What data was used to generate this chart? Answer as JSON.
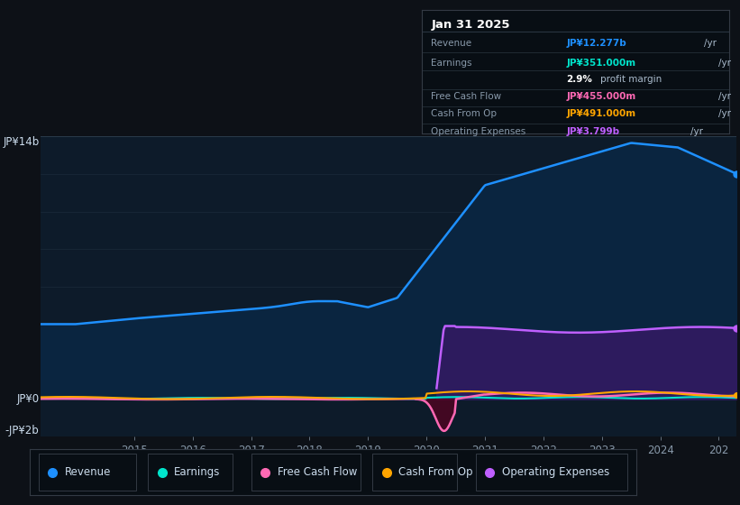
{
  "bg_color": "#0d1117",
  "chart_bg": "#0d1b2a",
  "title": "Jan 31 2025",
  "table_rows": [
    {
      "label": "Revenue",
      "value": "JP¥12.277b /yr",
      "value_color": "#1e90ff"
    },
    {
      "label": "Earnings",
      "value": "JP¥351.000m /yr",
      "value_color": "#00e5cc"
    },
    {
      "label": "",
      "value": "",
      "value_color": "#ffffff"
    },
    {
      "label": "Free Cash Flow",
      "value": "JP¥455.000m /yr",
      "value_color": "#ff69b4"
    },
    {
      "label": "Cash From Op",
      "value": "JP¥491.000m /yr",
      "value_color": "#ffa500"
    },
    {
      "label": "Operating Expenses",
      "value": "JP¥3.799b /yr",
      "value_color": "#bf5fff"
    }
  ],
  "ylabel_top": "JP¥14b",
  "ylabel_zero": "JP¥0",
  "ylabel_neg": "-JP¥2b",
  "legend": [
    {
      "label": "Revenue",
      "color": "#1e90ff"
    },
    {
      "label": "Earnings",
      "color": "#00e5cc"
    },
    {
      "label": "Free Cash Flow",
      "color": "#ff69b4"
    },
    {
      "label": "Cash From Op",
      "color": "#ffa500"
    },
    {
      "label": "Operating Expenses",
      "color": "#bf5fff"
    }
  ],
  "revenue_color": "#1e90ff",
  "revenue_fill": "#0a2540",
  "earnings_color": "#00e5cc",
  "fcf_color": "#ff69b4",
  "cfop_color": "#ffa500",
  "opex_color": "#bf5fff",
  "opex_fill": "#2d1b5e",
  "grid_color": "#2a3a4a",
  "ylim": [
    -2000000000,
    14000000000
  ],
  "xlim": [
    2013.4,
    2025.3
  ]
}
